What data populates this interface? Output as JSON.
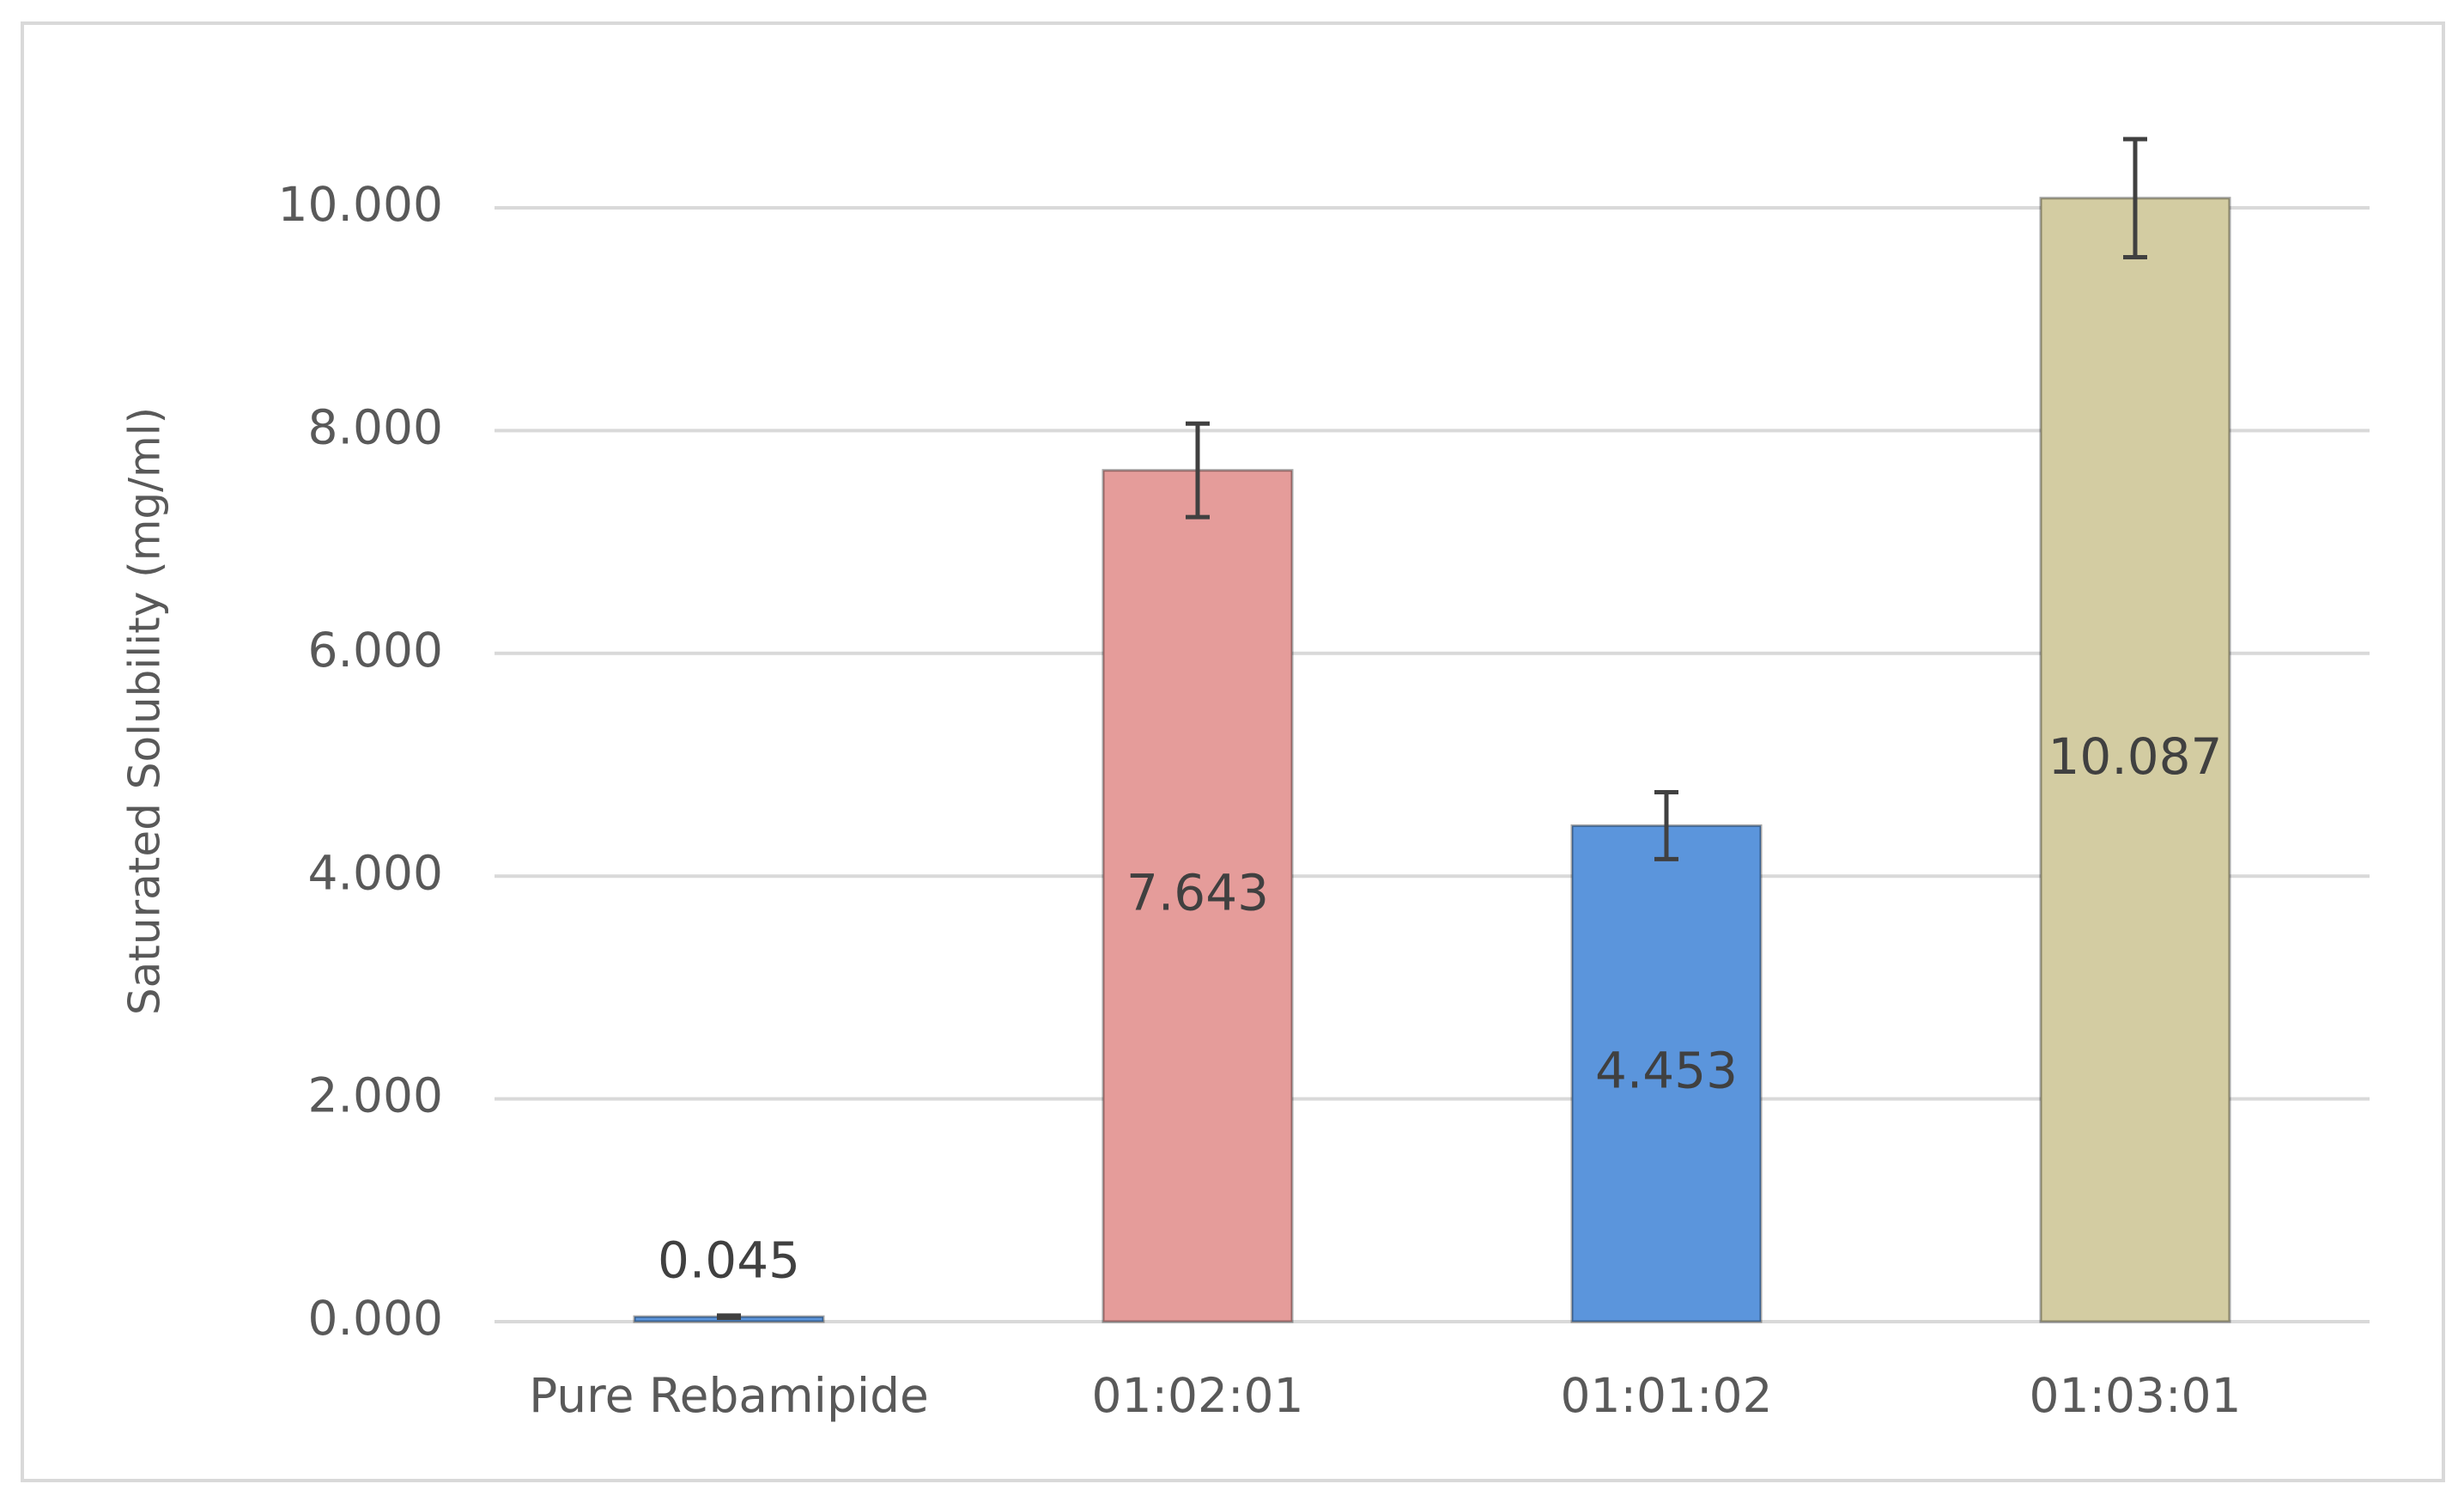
{
  "chart_data": {
    "type": "bar",
    "y_label": "Saturated Solubility (mg/ml)",
    "categories": [
      "Pure Rebamipide",
      "01:02:01",
      "01:01:02",
      "01:03:01"
    ],
    "values": [
      0.045,
      7.643,
      4.453,
      10.087
    ],
    "errors": [
      0.01,
      0.42,
      0.3,
      0.53
    ],
    "colors": [
      "#5b95dc",
      "#e59c9a",
      "#5b95dc",
      "#d3cca2"
    ],
    "ylim": [
      0,
      10.5
    ],
    "yticks": [
      {
        "value": 0,
        "label": "0.000"
      },
      {
        "value": 2,
        "label": "2.000"
      },
      {
        "value": 4,
        "label": "4.000"
      },
      {
        "value": 6,
        "label": "6.000"
      },
      {
        "value": 8,
        "label": "8.000"
      },
      {
        "value": 10,
        "label": "10.000"
      }
    ],
    "grid": true
  }
}
